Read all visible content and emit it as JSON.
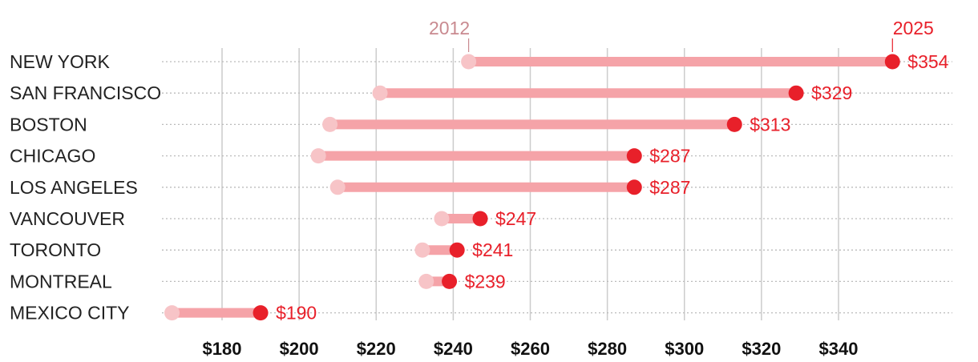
{
  "colors": {
    "series_2012": "#f7c4c7",
    "series_2025": "#e8202a",
    "connector": "#f5a3a8",
    "label_2012": "#c98a90",
    "grid": "#cccccc",
    "row_guide": "#bbbbbb"
  },
  "chart_data": {
    "type": "dumbbell",
    "title": "",
    "xlabel": "",
    "ylabel": "",
    "xlim": [
      164,
      356
    ],
    "x_ticks": [
      180,
      200,
      220,
      240,
      260,
      280,
      300,
      320,
      340
    ],
    "x_tick_labels": [
      "$180",
      "$200",
      "$220",
      "$240",
      "$260",
      "$280",
      "$300",
      "$320",
      "$340"
    ],
    "grid": true,
    "categories": [
      "NEW YORK",
      "SAN FRANCISCO",
      "BOSTON",
      "CHICAGO",
      "LOS ANGELES",
      "VANCOUVER",
      "TORONTO",
      "MONTREAL",
      "MEXICO CITY"
    ],
    "series": [
      {
        "name": "2012",
        "values": [
          244,
          221,
          208,
          205,
          210,
          237,
          232,
          233,
          167
        ]
      },
      {
        "name": "2025",
        "values": [
          354,
          329,
          313,
          287,
          287,
          247,
          241,
          239,
          190
        ]
      }
    ],
    "value_labels": [
      "$354",
      "$329",
      "$313",
      "$287",
      "$287",
      "$247",
      "$241",
      "$239",
      "$190"
    ]
  }
}
